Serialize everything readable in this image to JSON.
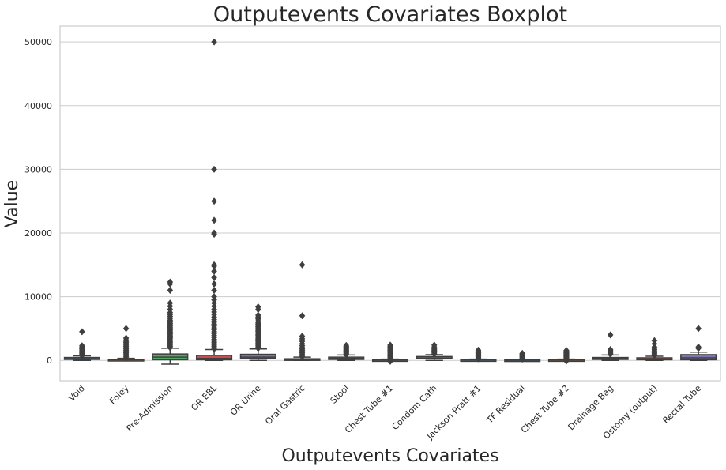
{
  "chart_data": {
    "type": "boxplot",
    "title": "Outputevents Covariates Boxplot",
    "xlabel": "Outputevents Covariates",
    "ylabel": "Value",
    "ylim": [
      -3200,
      52500
    ],
    "yticks": [
      0,
      10000,
      20000,
      30000,
      40000,
      50000
    ],
    "grid": true,
    "categories": [
      "Void",
      "Foley",
      "Pre-Admission",
      "OR EBL",
      "OR Urine",
      "Oral Gastric",
      "Stool",
      "Chest Tube #1",
      "Condom Cath",
      "Jackson Pratt #1",
      "TF Residual",
      "Chest Tube #2",
      "Drainage Bag",
      "Ostomy (output)",
      "Rectal Tube"
    ],
    "boxes": [
      {
        "category": "Void",
        "color": "#4c72b0",
        "whislo": 0,
        "q1": 150,
        "median": 250,
        "q3": 450,
        "whishi": 700,
        "fliers": [
          750,
          900,
          1050,
          1200,
          1350,
          1500,
          1650,
          1800,
          1950,
          2100,
          2300,
          4500
        ]
      },
      {
        "category": "Foley",
        "color": "#dd8452",
        "whislo": 0,
        "q1": 40,
        "median": 80,
        "q3": 150,
        "whishi": 320,
        "fliers": [
          400,
          600,
          800,
          1000,
          1200,
          1400,
          1600,
          1800,
          2000,
          2200,
          2400,
          2600,
          2800,
          3000,
          3200,
          3500,
          5000
        ]
      },
      {
        "category": "Pre-Admission",
        "color": "#55a868",
        "whislo": -600,
        "q1": 100,
        "median": 500,
        "q3": 1000,
        "whishi": 1900,
        "fliers": [
          2000,
          2200,
          2400,
          2600,
          2800,
          3000,
          3200,
          3400,
          3600,
          3800,
          4000,
          4200,
          4400,
          4600,
          4800,
          5000,
          5200,
          5400,
          5600,
          5800,
          6000,
          6300,
          6600,
          6900,
          7200,
          7500,
          8000,
          8500,
          9000,
          11000,
          12000,
          12300
        ]
      },
      {
        "category": "OR EBL",
        "color": "#c44e52",
        "whislo": 0,
        "q1": 100,
        "median": 300,
        "q3": 800,
        "whishi": 1700,
        "fliers": [
          1800,
          2000,
          2200,
          2400,
          2600,
          2800,
          3000,
          3300,
          3600,
          3900,
          4200,
          4500,
          4800,
          5100,
          5400,
          5700,
          6000,
          6400,
          6800,
          7200,
          7600,
          8000,
          8500,
          9000,
          9500,
          10000,
          11000,
          12000,
          13000,
          14000,
          14800,
          15000,
          19800,
          20000,
          22000,
          25000,
          30000,
          50000
        ]
      },
      {
        "category": "OR Urine",
        "color": "#8172b3",
        "whislo": 0,
        "q1": 300,
        "median": 500,
        "q3": 950,
        "whishi": 1800,
        "fliers": [
          1900,
          2100,
          2300,
          2500,
          2700,
          2900,
          3100,
          3300,
          3500,
          3700,
          3900,
          4100,
          4300,
          4500,
          4700,
          4900,
          5100,
          5300,
          5500,
          5700,
          5900,
          6200,
          6500,
          6800,
          7100,
          8000,
          8400
        ]
      },
      {
        "category": "Oral Gastric",
        "color": "#937860",
        "whislo": 0,
        "q1": 30,
        "median": 100,
        "q3": 250,
        "whishi": 500,
        "fliers": [
          600,
          800,
          1000,
          1200,
          1400,
          1600,
          1800,
          2000,
          2300,
          2600,
          3000,
          3400,
          3800,
          7000,
          15000
        ]
      },
      {
        "category": "Stool",
        "color": "#da8bc3",
        "whislo": 0,
        "q1": 150,
        "median": 300,
        "q3": 500,
        "whishi": 850,
        "fliers": [
          900,
          1000,
          1100,
          1200,
          1300,
          1400,
          1500,
          1600,
          1700,
          1800,
          1900,
          2000,
          2100,
          2200,
          2350
        ]
      },
      {
        "category": "Chest Tube #1",
        "color": "#8c8c8c",
        "whislo": 0,
        "q1": 20,
        "median": 50,
        "q3": 100,
        "whishi": 200,
        "fliers": [
          -150,
          250,
          400,
          550,
          700,
          850,
          1000,
          1150,
          1300,
          1450,
          1600,
          1750,
          1900,
          2050,
          2200,
          2400
        ]
      },
      {
        "category": "Condom Cath",
        "color": "#ccb974",
        "whislo": 0,
        "q1": 250,
        "median": 400,
        "q3": 600,
        "whishi": 900,
        "fliers": [
          1000,
          1150,
          1300,
          1450,
          1600,
          1750,
          1900,
          2100,
          2400
        ]
      },
      {
        "category": "Jackson Pratt #1",
        "color": "#64b5cd",
        "whislo": 0,
        "q1": 20,
        "median": 50,
        "q3": 100,
        "whishi": 200,
        "fliers": [
          250,
          350,
          450,
          550,
          650,
          750,
          850,
          950,
          1050,
          1150,
          1250,
          1350,
          1450,
          1600
        ]
      },
      {
        "category": "TF Residual",
        "color": "#4c72b0",
        "whislo": 0,
        "q1": 10,
        "median": 30,
        "q3": 80,
        "whishi": 150,
        "fliers": [
          200,
          300,
          400,
          500,
          600,
          700,
          800,
          900,
          1000,
          1100
        ]
      },
      {
        "category": "Chest Tube #2",
        "color": "#dd8452",
        "whislo": 0,
        "q1": 20,
        "median": 50,
        "q3": 100,
        "whishi": 200,
        "fliers": [
          -100,
          250,
          350,
          450,
          550,
          650,
          750,
          850,
          950,
          1050,
          1150,
          1250,
          1350,
          1450,
          1550
        ]
      },
      {
        "category": "Drainage Bag",
        "color": "#55a868",
        "whislo": 0,
        "q1": 150,
        "median": 300,
        "q3": 450,
        "whishi": 850,
        "fliers": [
          950,
          1100,
          1250,
          1400,
          1550,
          1700,
          4000
        ]
      },
      {
        "category": "Ostomy (output)",
        "color": "#c44e52",
        "whislo": 0,
        "q1": 100,
        "median": 200,
        "q3": 400,
        "whishi": 650,
        "fliers": [
          750,
          900,
          1050,
          1200,
          1350,
          1500,
          1700,
          1900,
          2100,
          2600,
          3100
        ]
      },
      {
        "category": "Rectal Tube",
        "color": "#8172b3",
        "whislo": 0,
        "q1": 100,
        "median": 400,
        "q3": 900,
        "whishi": 1300,
        "fliers": [
          1900,
          2100,
          5000
        ]
      }
    ]
  }
}
